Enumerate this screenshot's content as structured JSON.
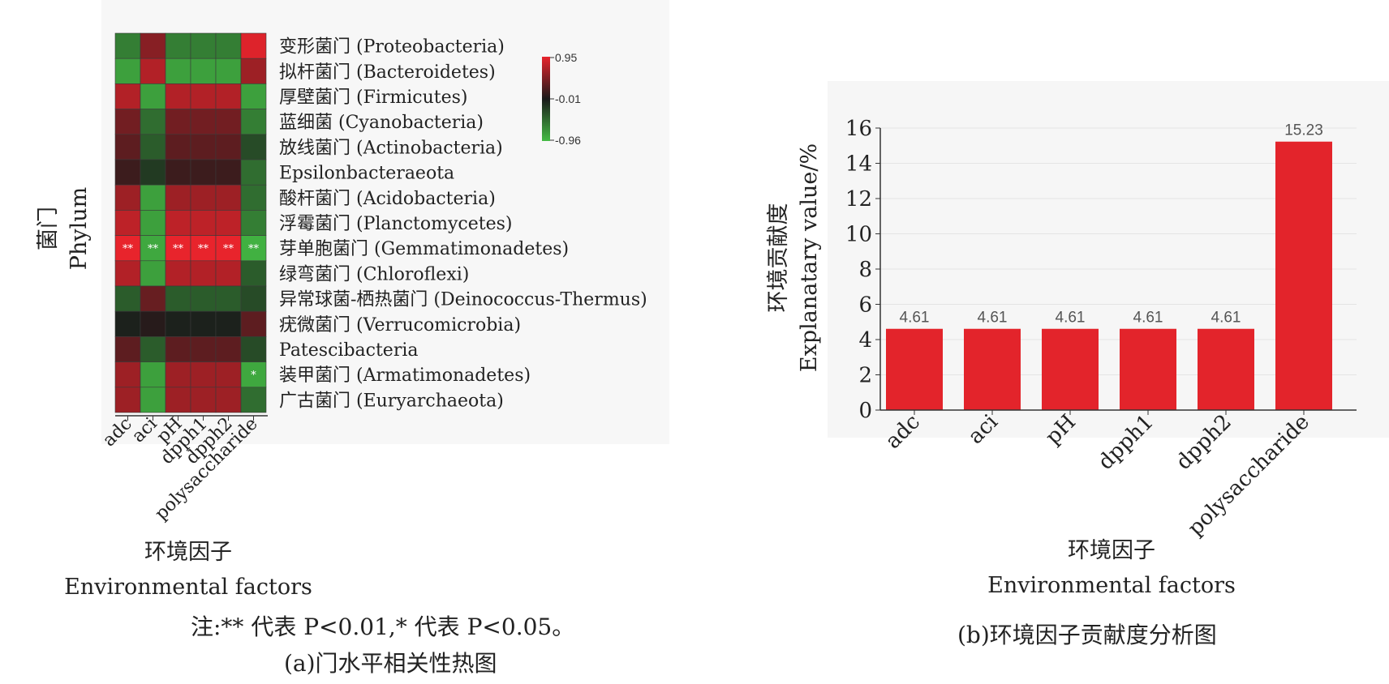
{
  "colors": {
    "positive": "#e8242c",
    "zero": "#1a1a1a",
    "negative": "#44bb44",
    "bar": "#e3242b",
    "panel_bg": "#f6f6f6"
  },
  "chart_data": [
    {
      "type": "heatmap",
      "rows": [
        "变形菌门 (Proteobacteria)",
        "拟杆菌门 (Bacteroidetes)",
        "厚壁菌门 (Firmicutes)",
        "蓝细菌 (Cyanobacteria)",
        "放线菌门 (Actinobacteria)",
        "Epsilonbacteraeota",
        "酸杆菌门 (Acidobacteria)",
        "浮霉菌门 (Planctomycetes)",
        "芽单胞菌门 (Gemmatimonadetes)",
        "绿弯菌门 (Chloroflexi)",
        "异常球菌-栖热菌门 (Deinococcus-Thermus)",
        "疣微菌门 (Verrucomicrobia)",
        "Patescibacteria",
        "装甲菌门 (Armatimonadetes)",
        "广古菌门 (Euryarchaeota)"
      ],
      "columns": [
        "adc",
        "aci",
        "pH",
        "dpph1",
        "dpph2",
        "polysaccharide"
      ],
      "values": [
        [
          -0.6,
          0.5,
          -0.6,
          -0.6,
          -0.6,
          0.9
        ],
        [
          -0.8,
          0.7,
          -0.8,
          -0.8,
          -0.8,
          0.6
        ],
        [
          0.7,
          -0.8,
          0.7,
          0.7,
          0.7,
          -0.8
        ],
        [
          0.4,
          -0.5,
          0.4,
          0.4,
          0.4,
          -0.6
        ],
        [
          0.3,
          -0.4,
          0.3,
          0.3,
          0.3,
          -0.3
        ],
        [
          0.15,
          -0.2,
          0.15,
          0.15,
          0.15,
          -0.5
        ],
        [
          0.6,
          -0.8,
          0.6,
          0.6,
          0.6,
          -0.5
        ],
        [
          0.75,
          -0.8,
          0.75,
          0.75,
          0.75,
          -0.6
        ],
        [
          0.95,
          -0.85,
          0.95,
          0.95,
          0.95,
          -0.9
        ],
        [
          0.7,
          -0.8,
          0.7,
          0.7,
          0.7,
          -0.4
        ],
        [
          -0.4,
          0.35,
          -0.4,
          -0.4,
          -0.4,
          -0.3
        ],
        [
          -0.05,
          0.05,
          -0.05,
          -0.05,
          -0.05,
          0.3
        ],
        [
          0.3,
          -0.4,
          0.3,
          0.3,
          0.3,
          -0.3
        ],
        [
          0.6,
          -0.8,
          0.6,
          0.6,
          0.6,
          -0.85
        ],
        [
          0.6,
          -0.8,
          0.6,
          0.6,
          0.6,
          -0.5
        ]
      ],
      "significance": [
        [
          "",
          "",
          "",
          "",
          "",
          ""
        ],
        [
          "",
          "",
          "",
          "",
          "",
          ""
        ],
        [
          "",
          "",
          "",
          "",
          "",
          ""
        ],
        [
          "",
          "",
          "",
          "",
          "",
          ""
        ],
        [
          "",
          "",
          "",
          "",
          "",
          ""
        ],
        [
          "",
          "",
          "",
          "",
          "",
          ""
        ],
        [
          "",
          "",
          "",
          "",
          "",
          ""
        ],
        [
          "",
          "",
          "",
          "",
          "",
          ""
        ],
        [
          "**",
          "**",
          "**",
          "**",
          "**",
          "**"
        ],
        [
          "",
          "",
          "",
          "",
          "",
          ""
        ],
        [
          "",
          "",
          "",
          "",
          "",
          ""
        ],
        [
          "",
          "",
          "",
          "",
          "",
          ""
        ],
        [
          "",
          "",
          "",
          "",
          "",
          ""
        ],
        [
          "",
          "",
          "",
          "",
          "",
          "*"
        ],
        [
          "",
          "",
          "",
          "",
          "",
          ""
        ]
      ],
      "colorbar": {
        "ticks": [
          "0.95",
          "-0.01",
          "-0.96"
        ],
        "max": 0.95,
        "mid": -0.01,
        "min": -0.96
      },
      "ylabel_cn": "菌门",
      "ylabel_en": "Phylum",
      "xlabel_cn": "环境因子",
      "xlabel_en": "Environmental factors",
      "note": "注:** 代表 P<0.01,* 代表 P<0.05。",
      "caption": "(a)门水平相关性热图"
    },
    {
      "type": "bar",
      "categories": [
        "adc",
        "aci",
        "pH",
        "dpph1",
        "dpph2",
        "polysaccharide"
      ],
      "values": [
        4.61,
        4.61,
        4.61,
        4.61,
        4.61,
        15.23
      ],
      "value_labels": [
        "4.61",
        "4.61",
        "4.61",
        "4.61",
        "4.61",
        "15.23"
      ],
      "ylim": [
        0,
        16
      ],
      "yticks": [
        "0",
        "2",
        "4",
        "6",
        "8",
        "10",
        "12",
        "14",
        "16"
      ],
      "ylabel_cn": "环境贡献度",
      "ylabel_en": "Explanatary value/%",
      "xlabel_cn": "环境因子",
      "xlabel_en": "Environmental factors",
      "caption": "(b)环境因子贡献度分析图"
    }
  ]
}
